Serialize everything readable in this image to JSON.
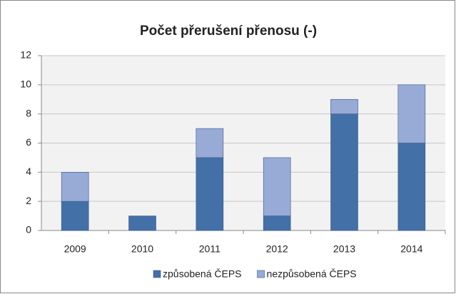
{
  "chart_data": {
    "type": "stacked-bar",
    "title": "Počet přerušení přenosu (-)",
    "categories": [
      "2009",
      "2010",
      "2011",
      "2012",
      "2013",
      "2014"
    ],
    "series": [
      {
        "name": "způsobená ČEPS",
        "color": "#4470a8",
        "values": [
          2,
          1,
          5,
          1,
          8,
          6
        ]
      },
      {
        "name": "nezpůsobená ČEPS",
        "color": "#98aad6",
        "values": [
          2,
          0,
          2,
          4,
          1,
          4
        ]
      }
    ],
    "ylim": [
      0,
      12
    ],
    "yticks": [
      0,
      2,
      4,
      6,
      8,
      10,
      12
    ],
    "grid": true,
    "legend": "bottom"
  }
}
